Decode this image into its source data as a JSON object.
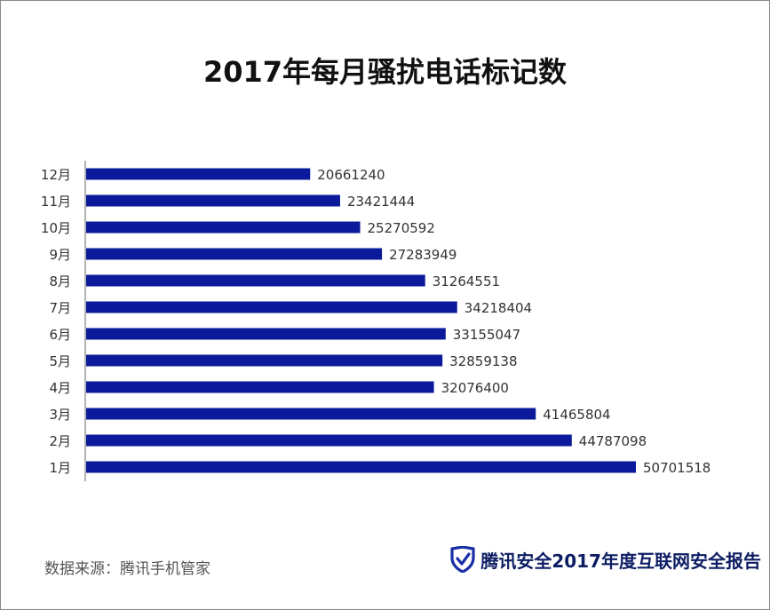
{
  "title": "2017年每月骚扰电话标记数",
  "source": "数据来源：腾讯手机管家",
  "brand": {
    "text": "腾讯安全2017年度互联网安全报告",
    "icon": "shield-check-icon",
    "color": "#0d1d63"
  },
  "chart_data": {
    "type": "bar",
    "orientation": "horizontal",
    "title": "2017年每月骚扰电话标记数",
    "categories": [
      "12月",
      "11月",
      "10月",
      "9月",
      "8月",
      "7月",
      "6月",
      "5月",
      "4月",
      "3月",
      "2月",
      "1月"
    ],
    "values": [
      20661240,
      23421444,
      25270592,
      27283949,
      31264551,
      34218404,
      33155047,
      32859138,
      32076400,
      41465804,
      44787098,
      50701518
    ],
    "xlim": [
      0,
      50701518
    ],
    "grid": false,
    "legend": "none",
    "bar_color": "#0a1a9a"
  }
}
